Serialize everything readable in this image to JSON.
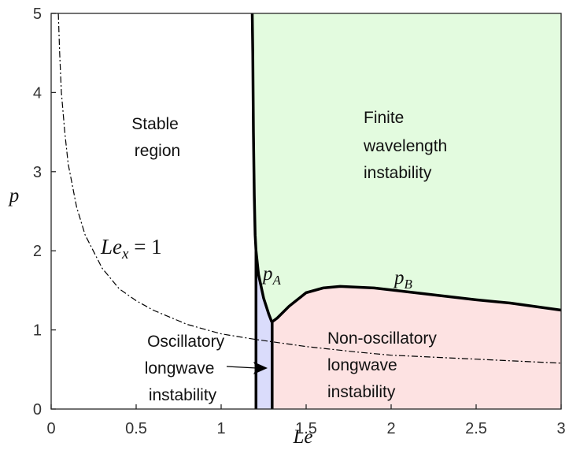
{
  "chart_data": {
    "type": "area",
    "xlabel": "Le",
    "ylabel": "p",
    "xlim": [
      0,
      3
    ],
    "ylim": [
      0,
      5
    ],
    "xticks": [
      "0",
      "0.5",
      "1",
      "1.5",
      "2",
      "2.5",
      "3"
    ],
    "yticks": [
      "0",
      "1",
      "2",
      "3",
      "4",
      "5"
    ],
    "grid": false,
    "colors": {
      "finite": "#e3fbdf",
      "nonosc": "#fde2e2",
      "osc": "#dadcfb",
      "boundary": "#000000"
    },
    "regions": [
      {
        "name": "finite",
        "lines": [
          "Finite",
          "wavelength",
          "instability"
        ]
      },
      {
        "name": "stable",
        "lines": [
          "Stable",
          "region"
        ]
      },
      {
        "name": "osc",
        "lines": [
          "Oscillatory",
          "longwave",
          "instability"
        ]
      },
      {
        "name": "nonosc",
        "lines": [
          "Non-oscillatory",
          "longwave",
          "instability"
        ]
      }
    ],
    "neutral_curve": {
      "x": [
        1.183,
        1.186,
        1.19,
        1.195,
        1.2,
        1.205
      ],
      "y": [
        5,
        4.5,
        3.5,
        2.7,
        2.2,
        2.0
      ]
    },
    "pA_curve": {
      "label_main": "p",
      "label_sub": "A",
      "x": [
        1.205,
        1.22,
        1.25,
        1.28,
        1.298
      ],
      "y": [
        2.0,
        1.7,
        1.4,
        1.2,
        1.1
      ]
    },
    "pB_curve": {
      "label_main": "p",
      "label_sub": "B",
      "x": [
        1.298,
        1.33,
        1.4,
        1.5,
        1.6,
        1.7,
        1.9,
        2.1,
        2.3,
        2.5,
        2.7,
        3.0
      ],
      "y": [
        1.1,
        1.15,
        1.3,
        1.47,
        1.53,
        1.55,
        1.53,
        1.48,
        1.43,
        1.38,
        1.34,
        1.25
      ]
    },
    "osc_boundary_x": 1.3,
    "lex1_curve": {
      "label_main": "Le",
      "label_sub": "x",
      "label_rest": " = 1",
      "x": [
        0.042,
        0.05,
        0.06,
        0.08,
        0.1,
        0.15,
        0.2,
        0.3,
        0.4,
        0.5,
        0.6,
        0.8,
        1.0,
        1.2,
        1.5,
        1.8,
        2.0,
        2.5,
        3.0
      ],
      "y": [
        5.0,
        4.5,
        4.0,
        3.5,
        3.1,
        2.55,
        2.2,
        1.78,
        1.52,
        1.37,
        1.25,
        1.07,
        0.95,
        0.88,
        0.79,
        0.72,
        0.68,
        0.63,
        0.58
      ]
    }
  }
}
